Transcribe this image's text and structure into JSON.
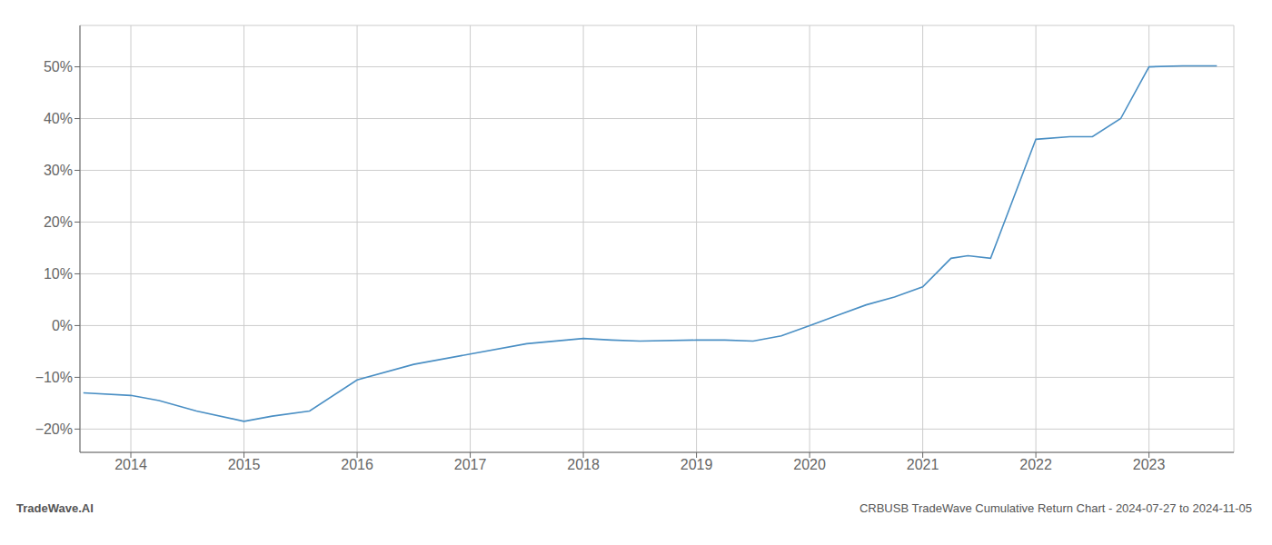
{
  "chart_data": {
    "type": "line",
    "title": "CRBUSB TradeWave Cumulative Return Chart - 2024-07-27 to 2024-11-05",
    "annotations": [
      "TradeWave.AI"
    ],
    "x": [
      2013.58,
      2014.0,
      2014.25,
      2014.58,
      2015.0,
      2015.25,
      2015.58,
      2016.0,
      2016.5,
      2017.0,
      2017.5,
      2018.0,
      2018.25,
      2018.5,
      2019.0,
      2019.25,
      2019.5,
      2019.75,
      2020.0,
      2020.25,
      2020.5,
      2020.75,
      2021.0,
      2021.25,
      2021.4,
      2021.6,
      2022.0,
      2022.3,
      2022.5,
      2022.75,
      2023.0,
      2023.3,
      2023.6
    ],
    "values": [
      -0.13,
      -0.135,
      -0.145,
      -0.165,
      -0.185,
      -0.175,
      -0.165,
      -0.105,
      -0.075,
      -0.055,
      -0.035,
      -0.025,
      -0.028,
      -0.03,
      -0.028,
      -0.028,
      -0.03,
      -0.02,
      0.0,
      0.02,
      0.04,
      0.055,
      0.075,
      0.13,
      0.135,
      0.13,
      0.36,
      0.365,
      0.365,
      0.4,
      0.5,
      0.502,
      0.502
    ],
    "color": "#4a8fc4",
    "xlim": [
      2013.55,
      2023.75
    ],
    "xticks": [
      2014,
      2015,
      2016,
      2017,
      2018,
      2019,
      2020,
      2021,
      2022,
      2023
    ],
    "ylim": [
      -0.245,
      0.58
    ],
    "yticks": [
      {
        "value": -0.2,
        "label": "−20%"
      },
      {
        "value": -0.1,
        "label": "−10%"
      },
      {
        "value": 0.0,
        "label": "0%"
      },
      {
        "value": 0.1,
        "label": "10%"
      },
      {
        "value": 0.2,
        "label": "20%"
      },
      {
        "value": 0.3,
        "label": "30%"
      },
      {
        "value": 0.4,
        "label": "40%"
      },
      {
        "value": 0.5,
        "label": "50%"
      }
    ],
    "grid": true
  }
}
